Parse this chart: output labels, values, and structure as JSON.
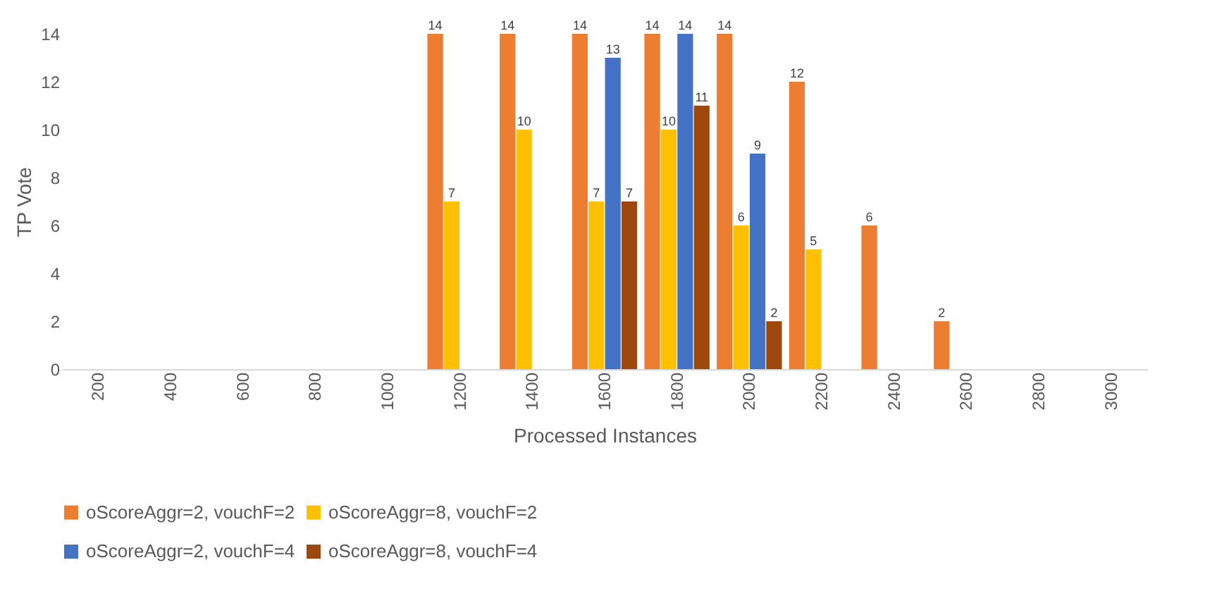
{
  "chart_data": {
    "type": "bar",
    "xlabel": "Processed Instances",
    "ylabel": "TP Vote",
    "categories": [
      "200",
      "400",
      "600",
      "800",
      "1000",
      "1200",
      "1400",
      "1600",
      "1800",
      "2000",
      "2200",
      "2400",
      "2600",
      "2800",
      "3000"
    ],
    "series": [
      {
        "name": "oScoreAggr=2, vouchF=2",
        "color": "#ed7d31",
        "values": [
          null,
          null,
          null,
          null,
          null,
          14,
          14,
          14,
          14,
          14,
          12,
          6,
          2,
          null,
          null
        ]
      },
      {
        "name": "oScoreAggr=8, vouchF=2",
        "color": "#ffc000",
        "values": [
          null,
          null,
          null,
          null,
          null,
          7,
          10,
          7,
          10,
          6,
          5,
          null,
          null,
          null,
          null
        ]
      },
      {
        "name": "oScoreAggr=2, vouchF=4",
        "color": "#4472c4",
        "values": [
          null,
          null,
          null,
          null,
          null,
          null,
          null,
          13,
          14,
          9,
          null,
          null,
          null,
          null,
          null
        ]
      },
      {
        "name": "oScoreAggr=8, vouchF=4",
        "color": "#9e480e",
        "values": [
          null,
          null,
          null,
          null,
          null,
          null,
          null,
          7,
          11,
          2,
          null,
          null,
          null,
          null,
          null
        ]
      }
    ],
    "ylim": [
      0,
      14
    ],
    "yticks": [
      0,
      2,
      4,
      6,
      8,
      10,
      12,
      14
    ],
    "grid": false,
    "legend": "bottom",
    "data_labels": true
  }
}
